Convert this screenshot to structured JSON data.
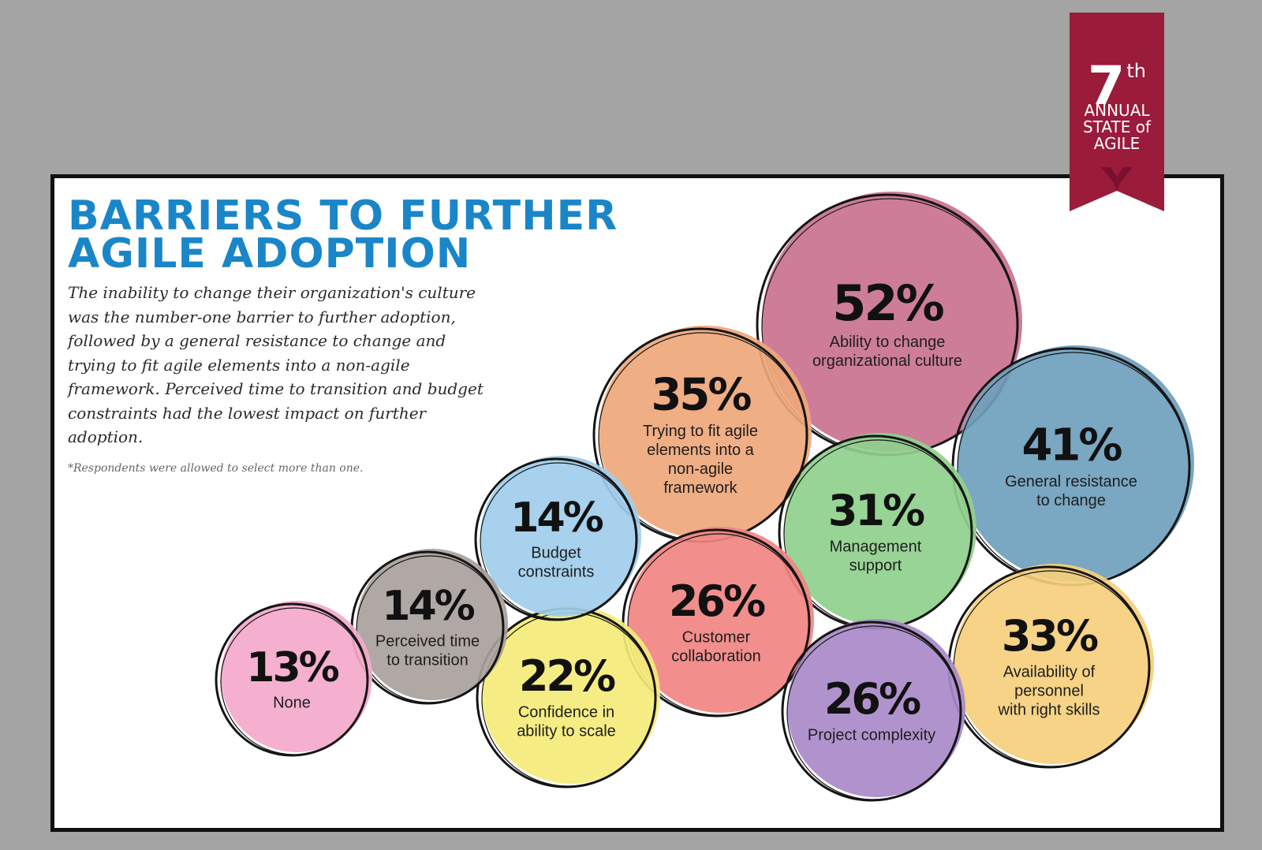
{
  "title_line1": "BARRIERS TO FURTHER",
  "title_line2": "AGILE ADOPTION",
  "description": "The inability to change their organization's culture was the number-one barrier to further adoption, followed by a general resistance to change and trying to fit agile elements into a non-agile framework. Perceived time to transition and budget constraints had the lowest impact on further adoption.",
  "footnote": "*Respondents were allowed to select more than one.",
  "badge": {
    "number": "7",
    "ordinal": "th",
    "line1": "ANNUAL",
    "line2": "STATE of",
    "line3": "AGILE",
    "color": "#9a1b3a"
  },
  "chart_data": {
    "type": "bubble",
    "title": "BARRIERS TO FURTHER AGILE ADOPTION",
    "unit": "%",
    "items": [
      {
        "label": "Ability to change organizational culture",
        "value": 52,
        "color": "#c9728f",
        "display": "52%",
        "lines": [
          "Ability to change",
          "organizational culture"
        ]
      },
      {
        "label": "General resistance to change",
        "value": 41,
        "color": "#6f9fbc",
        "display": "41%",
        "lines": [
          "General resistance",
          "to change"
        ]
      },
      {
        "label": "Trying to fit agile elements into a non-agile framework",
        "value": 35,
        "color": "#efa77b",
        "display": "35%",
        "lines": [
          "Trying to fit agile",
          "elements into a",
          "non-agile",
          "framework"
        ]
      },
      {
        "label": "Availability of personnel with right skills",
        "value": 33,
        "color": "#f5cf7c",
        "display": "33%",
        "lines": [
          "Availability of",
          "personnel",
          "with right skills"
        ]
      },
      {
        "label": "Management support",
        "value": 31,
        "color": "#8fd08c",
        "display": "31%",
        "lines": [
          "Management",
          "support"
        ]
      },
      {
        "label": "Customer collaboration",
        "value": 26,
        "color": "#f18482",
        "display": "26%",
        "lines": [
          "Customer",
          "collaboration"
        ]
      },
      {
        "label": "Project complexity",
        "value": 26,
        "color": "#a98ac9",
        "display": "26%",
        "lines": [
          "Project complexity"
        ]
      },
      {
        "label": "Confidence in ability to scale",
        "value": 22,
        "color": "#f4ec7a",
        "display": "22%",
        "lines": [
          "Confidence in",
          "ability to scale"
        ]
      },
      {
        "label": "Budget constraints",
        "value": 14,
        "color": "#9fcdec",
        "display": "14%",
        "lines": [
          "Budget",
          "constraints"
        ]
      },
      {
        "label": "Perceived time to transition",
        "value": 14,
        "color": "#a9a19c",
        "display": "14%",
        "lines": [
          "Perceived time",
          "to transition"
        ]
      },
      {
        "label": "None",
        "value": 13,
        "color": "#f4a9cb",
        "display": "13%",
        "lines": [
          "None"
        ]
      }
    ]
  }
}
